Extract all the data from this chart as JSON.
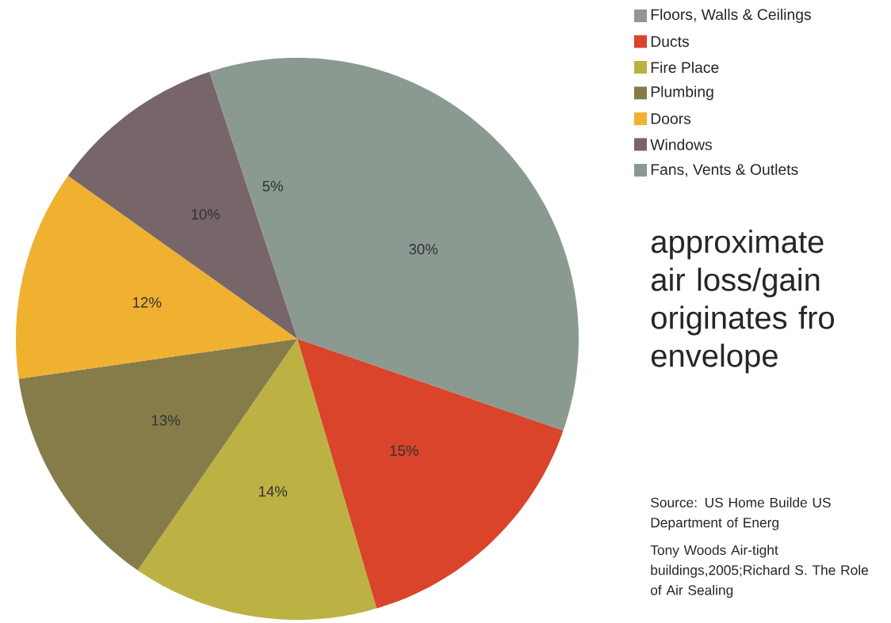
{
  "chart_data": {
    "type": "pie",
    "categories": [
      "Floors, Walls & Ceilings",
      "Ducts",
      "Fire Place",
      "Plumbing",
      "Doors",
      "Windows",
      "Fans, Vents & Outlets"
    ],
    "values": [
      30,
      15,
      14,
      13,
      12,
      10,
      5
    ],
    "colors": [
      "#8a9a90",
      "#d9442a",
      "#bcb143",
      "#857c4a",
      "#f0b131",
      "#786569",
      "#8a9a90"
    ],
    "value_labels": [
      "30%",
      "15%",
      "14%",
      "13%",
      "12%",
      "10%",
      "5%"
    ],
    "legend": "top right",
    "annotations": [
      "approximate air loss/gain originates fro envelope",
      "Source: US Home Builde US Department of Energ",
      "Tony Woods Air-tight buildings,2005;Richard S. The Role of Air Sealing"
    ]
  }
}
